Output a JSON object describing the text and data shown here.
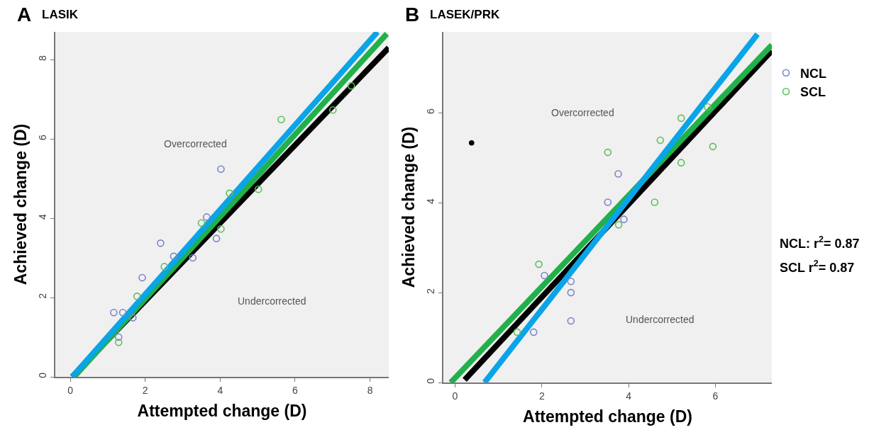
{
  "chart_data": [
    {
      "type": "scatter",
      "title": "A",
      "subtitle": "LASIK",
      "xlabel": "Attempted change (D)",
      "ylabel": "Achieved change (D)",
      "xlim": [
        -0.4,
        8.5
      ],
      "ylim": [
        0,
        8.7
      ],
      "xticks": [
        0,
        2,
        4,
        6,
        8
      ],
      "yticks": [
        0,
        2,
        4,
        6,
        8
      ],
      "grid": false,
      "legend": false,
      "marker": "circle",
      "annotations": [
        "Overcorrected",
        "Undercorrected"
      ],
      "series": [
        {
          "type": "scatter",
          "color": "#7b86c8",
          "x": [
            4.02,
            2.41,
            1.92,
            1.16,
            1.4,
            1.67,
            1.29,
            3.9,
            3.27,
            3.64,
            2.76
          ],
          "values": [
            5.24,
            3.37,
            2.5,
            1.62,
            1.62,
            1.49,
            1.0,
            3.49,
            3.0,
            4.03,
            3.04
          ]
        },
        {
          "type": "scatter",
          "color": "#5cbf5c",
          "x": [
            5.63,
            7.01,
            7.5,
            5.02,
            4.02,
            3.5,
            1.78,
            1.29,
            2.51,
            4.25
          ],
          "values": [
            6.49,
            6.73,
            7.34,
            4.73,
            3.73,
            3.88,
            2.03,
            0.87,
            2.78,
            4.63
          ]
        },
        {
          "type": "line",
          "color": "#000000",
          "marker": "none",
          "x": [
            0.05,
            8.5
          ],
          "values": [
            0,
            8.3
          ]
        },
        {
          "type": "line",
          "color": "#22b04a",
          "marker": "none",
          "x": [
            0.1,
            8.45
          ],
          "values": [
            0,
            8.65
          ]
        },
        {
          "type": "line",
          "color": "#0aa4e8",
          "marker": "none",
          "x": [
            0.05,
            8.2
          ],
          "values": [
            0,
            8.7
          ]
        }
      ]
    },
    {
      "type": "scatter",
      "title": "B",
      "subtitle": "LASEK/PRK",
      "xlabel": "Attempted change (D)",
      "ylabel": "Achieved change (D)",
      "xlim": [
        -0.27,
        7.3
      ],
      "ylim": [
        0,
        7.8
      ],
      "xticks": [
        0,
        2,
        4,
        6
      ],
      "yticks": [
        0,
        2,
        4,
        6
      ],
      "grid": false,
      "legend": "top right",
      "marker": "circle",
      "annotations": [
        "Overcorrected",
        "Undercorrected",
        "NCL: r$^{2}$= 0.87",
        "SCL r$^{2}$= 0.87"
      ],
      "series": [
        {
          "name": "NCL",
          "type": "scatter",
          "color": "#7b86c8",
          "x": [
            3.76,
            3.52,
            3.89,
            2.06,
            2.67,
            2.67,
            2.67,
            1.81
          ],
          "values": [
            4.64,
            4.01,
            3.63,
            2.38,
            2.25,
            2.0,
            1.37,
            1.12
          ]
        },
        {
          "name": "SCL",
          "type": "scatter",
          "color": "#5cbf5c",
          "x": [
            3.52,
            5.21,
            4.73,
            5.94,
            5.21,
            4.6,
            3.77,
            1.93,
            5.82,
            1.43
          ],
          "values": [
            5.12,
            5.88,
            5.39,
            5.25,
            4.89,
            4.01,
            3.51,
            2.63,
            6.13,
            1.12
          ]
        },
        {
          "type": "line",
          "color": "#000000",
          "marker": "none",
          "x": [
            0.22,
            7.3
          ],
          "values": [
            0.06,
            7.38
          ]
        },
        {
          "type": "line",
          "color": "#22b04a",
          "marker": "none",
          "x": [
            -0.1,
            7.3
          ],
          "values": [
            0,
            7.51
          ]
        },
        {
          "type": "line",
          "color": "#0aa4e8",
          "marker": "none",
          "x": [
            0.68,
            6.97
          ],
          "values": [
            0,
            7.75
          ]
        },
        {
          "type": "scatter",
          "color": "#000000",
          "marker": "dot",
          "x": [
            0.38
          ],
          "values": [
            5.33
          ]
        }
      ]
    }
  ]
}
